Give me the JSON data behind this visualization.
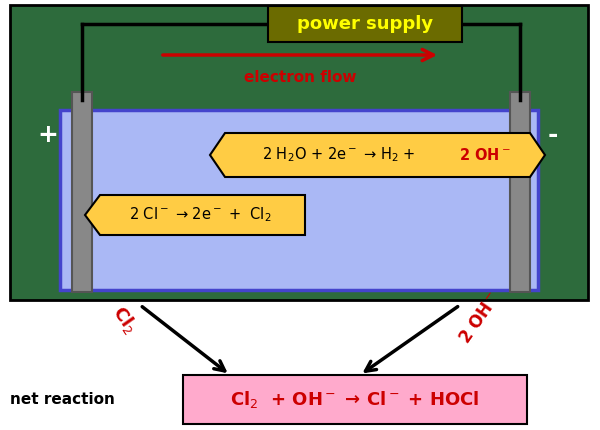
{
  "bg_color": "#ffffff",
  "outer_bg": "#2d6b3c",
  "tank_color": "#aab8f5",
  "tank_border": "#4444cc",
  "electrode_color": "#888888",
  "electrode_border": "#555555",
  "power_supply_bg": "#6b6b00",
  "power_supply_text": "power supply",
  "power_supply_text_color": "#ffff00",
  "electron_flow_color": "#cc0000",
  "electron_flow_text": "electron flow",
  "plus_label": "+",
  "minus_label": "-",
  "eq_box_color": "#ffcc44",
  "net_box_color": "#ffaacc",
  "red_color": "#cc0000",
  "black_color": "#000000",
  "wire_color": "#000000",
  "net_reaction_label": "net reaction"
}
